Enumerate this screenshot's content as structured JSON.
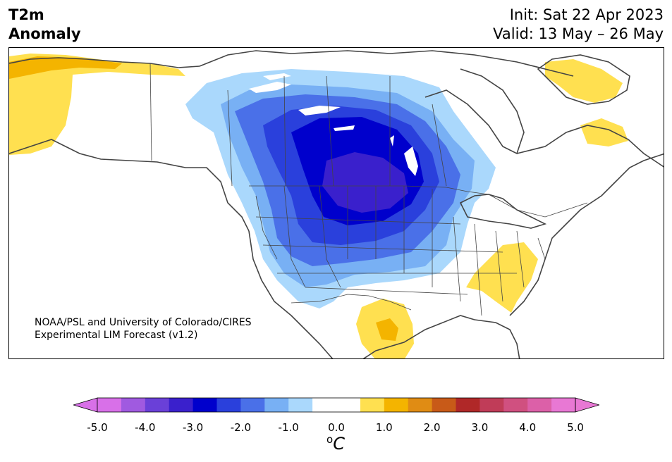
{
  "header": {
    "title_line1": "T2m",
    "title_line2": "Anomaly",
    "init": "Init: Sat 22 Apr 2023",
    "valid": "Valid: 13 May – 26 May"
  },
  "map": {
    "region": "North America",
    "credit_line1": "NOAA/PSL and University of Colorado/CIRES",
    "credit_line2": "Experimental LIM Forecast (v1.2)"
  },
  "colorbar": {
    "unit_base": "C",
    "unit_sup": "o",
    "tick_labels": [
      "-5.0",
      "-4.0",
      "-3.0",
      "-2.0",
      "-1.0",
      "0.0",
      "1.0",
      "2.0",
      "3.0",
      "4.0",
      "5.0"
    ],
    "colors": [
      "#d870e8",
      "#a05ae0",
      "#6a40d8",
      "#3a20cc",
      "#0000cc",
      "#2a40dc",
      "#4a70e8",
      "#78b0f4",
      "#aad8fc",
      "#ffffff",
      "#ffffff",
      "#ffe050",
      "#f4b400",
      "#e08c14",
      "#c85a18",
      "#b02828",
      "#c03c58",
      "#d05080",
      "#dc60a8",
      "#e878d4"
    ],
    "under_color": "#d870e8",
    "over_color": "#e878d4"
  }
}
